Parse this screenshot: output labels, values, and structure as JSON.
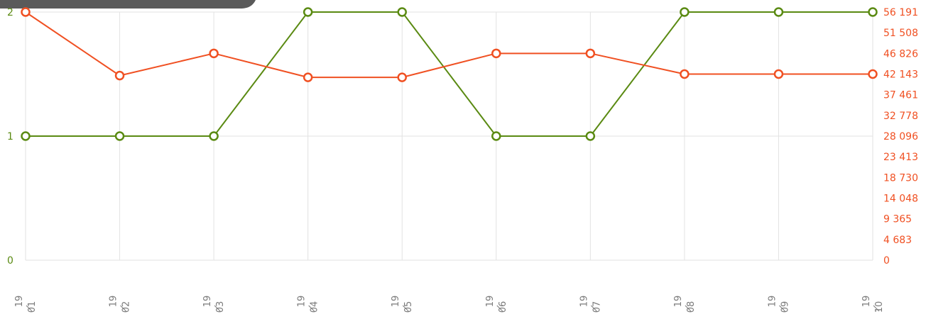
{
  "colors": {
    "left_series": "#5a8a12",
    "right_series": "#f05022",
    "grid": "#e2e2e2",
    "axis_label": "#7a7a7a",
    "tab": "#5a5a5a"
  },
  "chart_data": {
    "type": "line",
    "categories": [
      {
        "year": "19",
        "month": "01"
      },
      {
        "year": "19",
        "month": "02"
      },
      {
        "year": "19",
        "month": "03"
      },
      {
        "year": "19",
        "month": "04"
      },
      {
        "year": "19",
        "month": "05"
      },
      {
        "year": "19",
        "month": "06"
      },
      {
        "year": "19",
        "month": "07"
      },
      {
        "year": "19",
        "month": "08"
      },
      {
        "year": "19",
        "month": "09"
      },
      {
        "year": "19",
        "month": "10"
      }
    ],
    "series": [
      {
        "axis": "left",
        "color": "#5a8a12",
        "values": [
          1,
          1,
          1,
          2,
          2,
          1,
          1,
          2,
          2,
          2
        ]
      },
      {
        "axis": "right",
        "color": "#f05022",
        "values": [
          56191,
          41800,
          46826,
          41400,
          41400,
          46826,
          46826,
          42143,
          42143,
          42143
        ]
      }
    ],
    "left_axis": {
      "ylim": [
        0,
        2
      ],
      "ticks": [
        {
          "value": 0,
          "label": "0"
        },
        {
          "value": 1,
          "label": "1"
        },
        {
          "value": 2,
          "label": "2"
        }
      ]
    },
    "right_axis": {
      "ylim": [
        0,
        56191
      ],
      "ticks": [
        {
          "value": 0,
          "label": "0"
        },
        {
          "value": 4683,
          "label": "4 683"
        },
        {
          "value": 9365,
          "label": "9 365"
        },
        {
          "value": 14048,
          "label": "14 048"
        },
        {
          "value": 18730,
          "label": "18 730"
        },
        {
          "value": 23413,
          "label": "23 413"
        },
        {
          "value": 28096,
          "label": "28 096"
        },
        {
          "value": 32778,
          "label": "32 778"
        },
        {
          "value": 37461,
          "label": "37 461"
        },
        {
          "value": 42143,
          "label": "42 143"
        },
        {
          "value": 46826,
          "label": "46 826"
        },
        {
          "value": 51508,
          "label": "51 508"
        },
        {
          "value": 56191,
          "label": "56 191"
        }
      ]
    },
    "grid": true
  }
}
